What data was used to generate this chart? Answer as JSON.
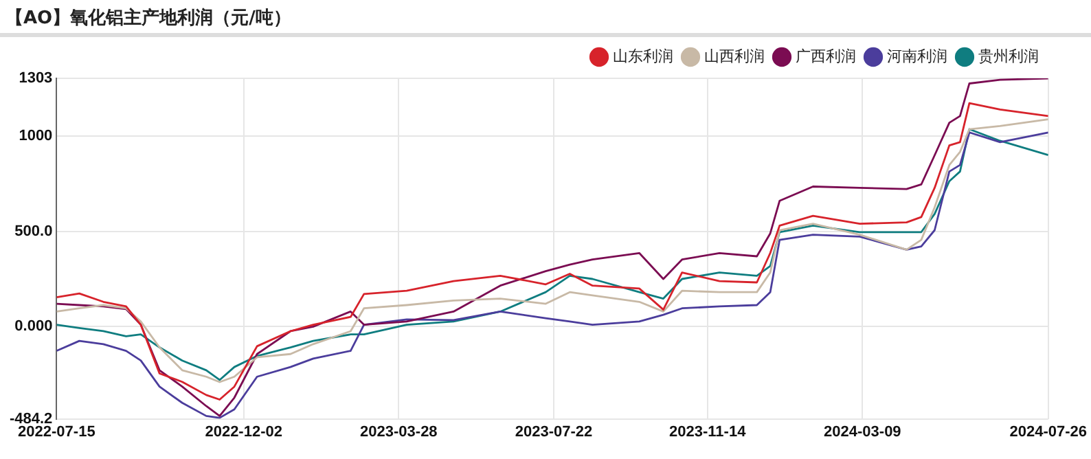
{
  "chart_data": {
    "type": "line",
    "title": "【AO】氧化铝主产地利润（元/吨）",
    "x": [
      "2022-07-15",
      "2022-08-01",
      "2022-08-19",
      "2022-09-05",
      "2022-09-16",
      "2022-09-30",
      "2022-10-17",
      "2022-11-04",
      "2022-11-14",
      "2022-11-25",
      "2022-12-12",
      "2023-01-06",
      "2023-01-23",
      "2023-02-20",
      "2023-03-02",
      "2023-04-03",
      "2023-05-08",
      "2023-06-12",
      "2023-07-16",
      "2023-08-03",
      "2023-08-20",
      "2023-09-24",
      "2023-10-12",
      "2023-10-26",
      "2023-11-23",
      "2023-12-21",
      "2023-12-31",
      "2024-01-07",
      "2024-02-01",
      "2024-03-07",
      "2024-04-11",
      "2024-04-22",
      "2024-05-02",
      "2024-05-13",
      "2024-05-21",
      "2024-05-28",
      "2024-06-20",
      "2024-07-26"
    ],
    "series": [
      {
        "name": "山东利润",
        "color": "#d7232b",
        "values": [
          154,
          174,
          130,
          106,
          10,
          -246,
          -290,
          -359,
          -383,
          -315,
          -103,
          -24,
          10,
          51,
          171,
          188,
          239,
          267,
          222,
          277,
          215,
          200,
          89,
          284,
          239,
          232,
          386,
          530,
          581,
          540,
          547,
          575,
          728,
          951,
          968,
          1173,
          1139,
          1105
        ]
      },
      {
        "name": "山西利润",
        "color": "#c8b9a6",
        "values": [
          79,
          96,
          113,
          96,
          27,
          -109,
          -229,
          -263,
          -291,
          -263,
          -161,
          -144,
          -92,
          -24,
          96,
          113,
          137,
          147,
          120,
          181,
          164,
          130,
          79,
          188,
          181,
          181,
          284,
          506,
          540,
          482,
          404,
          455,
          626,
          848,
          917,
          1036,
          1053,
          1088
        ]
      },
      {
        "name": "广西利润",
        "color": "#7b0c52",
        "values": [
          120,
          113,
          106,
          92,
          10,
          -229,
          -315,
          -417,
          -469,
          -373,
          -144,
          -24,
          0,
          79,
          10,
          27,
          79,
          215,
          291,
          325,
          352,
          386,
          250,
          352,
          386,
          369,
          489,
          660,
          735,
          728,
          722,
          746,
          899,
          1070,
          1105,
          1276,
          1295,
          1303
        ]
      },
      {
        "name": "河南利润",
        "color": "#4b3d9c",
        "values": [
          -127,
          -75,
          -92,
          -127,
          -178,
          -315,
          -400,
          -469,
          -479,
          -434,
          -263,
          -212,
          -168,
          -127,
          10,
          38,
          34,
          79,
          44,
          27,
          10,
          27,
          62,
          96,
          106,
          113,
          181,
          455,
          482,
          472,
          404,
          421,
          506,
          814,
          848,
          1019,
          968,
          1019
        ]
      },
      {
        "name": "贵州利润",
        "color": "#0f7d80",
        "values": [
          10,
          -7,
          -24,
          -51,
          -41,
          -109,
          -178,
          -229,
          -280,
          -212,
          -154,
          -109,
          -75,
          -41,
          -41,
          10,
          27,
          79,
          181,
          267,
          250,
          181,
          147,
          250,
          284,
          267,
          318,
          496,
          530,
          496,
          496,
          496,
          591,
          763,
          814,
          1036,
          975,
          900
        ]
      }
    ],
    "xlim": [
      "2022-07-15",
      "2024-07-26"
    ],
    "xticks": [
      "2022-07-15",
      "2022-12-02",
      "2023-03-28",
      "2023-07-22",
      "2023-11-14",
      "2024-03-09",
      "2024-07-26"
    ],
    "ylim": [
      -484.2,
      1303
    ],
    "yticks": [
      -484.2,
      {
        "value": 0,
        "label": "0.000"
      },
      {
        "value": 500,
        "label": "500.0"
      },
      1000,
      1303
    ],
    "grid": true,
    "legend": "top right",
    "marker": "none",
    "line_style": "solid"
  }
}
